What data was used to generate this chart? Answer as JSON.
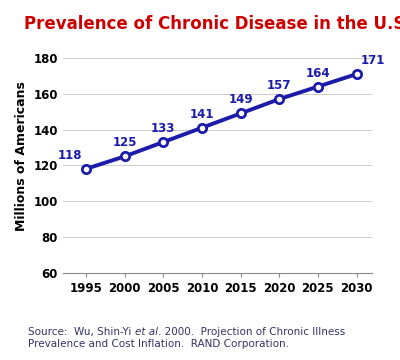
{
  "title": "Prevalence of Chronic Disease in the U.S.",
  "title_color": "#cc0000",
  "title_fontsize": 12,
  "ylabel": "Millions of Americans",
  "ylabel_fontsize": 9,
  "x": [
    1995,
    2000,
    2005,
    2010,
    2015,
    2020,
    2025,
    2030
  ],
  "y": [
    118,
    125,
    133,
    141,
    149,
    157,
    164,
    171
  ],
  "line_color": "#1c1caa",
  "marker_facecolor": "#ffffff",
  "marker_edgecolor": "#1c1caa",
  "marker_style": "o",
  "marker_size": 6,
  "marker_edge_width": 2.0,
  "line_width": 2.8,
  "ylim": [
    60,
    190
  ],
  "yticks": [
    60,
    80,
    100,
    120,
    140,
    160,
    180
  ],
  "xticks": [
    1995,
    2000,
    2005,
    2010,
    2015,
    2020,
    2025,
    2030
  ],
  "xlim": [
    1992,
    2032
  ],
  "label_color": "#1c1caa",
  "label_fontsize": 8.5,
  "source_text_before_ital": "Source:  Wu, Shin-Yi ",
  "source_ital": "et al",
  "source_text_after_ital": ". 2000.  Projection of Chronic Illness\nPrevalence and Cost Inflation.  RAND Corporation.",
  "source_fontsize": 7.5,
  "source_color": "#333366",
  "background_color": "#ffffff",
  "grid_color": "#cccccc",
  "tick_label_fontsize": 8.5
}
